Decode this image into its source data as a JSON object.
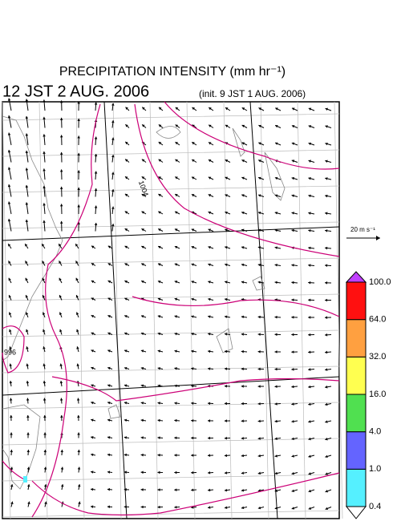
{
  "header": {
    "title": "PRECIPITATION INTENSITY (mm hr⁻¹)",
    "valid_time": "12 JST 2 AUG. 2006",
    "init_time": "(init. 9 JST 1 AUG. 2006)"
  },
  "wind_scale": {
    "label": "20 m s⁻¹"
  },
  "contour_labels": [
    "996",
    "1004"
  ],
  "colorbar": {
    "levels": [
      {
        "value": 0.4,
        "label": "0.4"
      },
      {
        "value": 1,
        "label": "1.0"
      },
      {
        "value": 4,
        "label": "4.0"
      },
      {
        "value": 16,
        "label": "16.0"
      },
      {
        "value": 32,
        "label": "32.0"
      },
      {
        "value": 64,
        "label": "64.0"
      },
      {
        "value": 100,
        "label": "100.0"
      }
    ],
    "colors": [
      "#ffffff",
      "#55f0ff",
      "#6464ff",
      "#50e050",
      "#ffff50",
      "#ffa040",
      "#ff1010",
      "#c040ff"
    ]
  }
}
